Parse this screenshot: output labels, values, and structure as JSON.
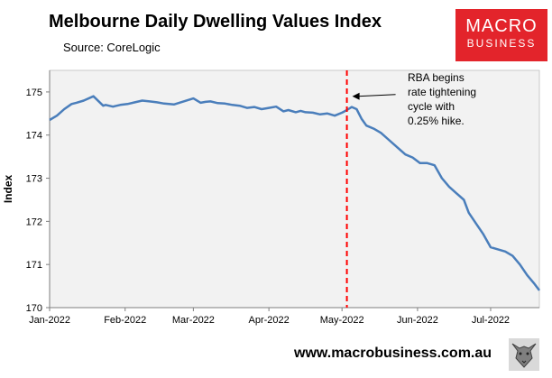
{
  "title": "Melbourne Daily Dwelling Values Index",
  "source": "Source: CoreLogic",
  "logo": {
    "line1": "MACRO",
    "line2": "BUSINESS"
  },
  "footer": {
    "url": "www.macrobusiness.com.au"
  },
  "colors": {
    "line": "#4a7ebb",
    "marker": "#ff0000",
    "plot_bg": "#f2f2f2",
    "logo": "#e3242b"
  },
  "chart_data": {
    "type": "line",
    "title": "Melbourne Daily Dwelling Values Index",
    "xlabel": "",
    "ylabel": "Index",
    "ylim": [
      170,
      175.5
    ],
    "yticks": [
      170,
      171,
      172,
      173,
      174,
      175
    ],
    "xlim": [
      "2022-01-01",
      "2022-07-21"
    ],
    "xticks": [
      {
        "date": "2022-01-01",
        "label": "Jan-2022"
      },
      {
        "date": "2022-02-01",
        "label": "Feb-2022"
      },
      {
        "date": "2022-03-01",
        "label": "Mar-2022"
      },
      {
        "date": "2022-04-01",
        "label": "Apr-2022"
      },
      {
        "date": "2022-05-01",
        "label": "May-2022"
      },
      {
        "date": "2022-06-01",
        "label": "Jun-2022"
      },
      {
        "date": "2022-07-01",
        "label": "Jul-2022"
      }
    ],
    "grid": false,
    "series": [
      {
        "x": [
          "2022-01-01",
          "2022-01-04",
          "2022-01-07",
          "2022-01-10",
          "2022-01-12",
          "2022-01-15",
          "2022-01-19",
          "2022-01-23",
          "2022-01-24",
          "2022-01-27",
          "2022-01-30",
          "2022-02-02",
          "2022-02-05",
          "2022-02-08",
          "2022-02-11",
          "2022-02-14",
          "2022-02-17",
          "2022-02-21",
          "2022-02-25",
          "2022-03-01",
          "2022-03-04",
          "2022-03-06",
          "2022-03-08",
          "2022-03-11",
          "2022-03-14",
          "2022-03-17",
          "2022-03-20",
          "2022-03-23",
          "2022-03-26",
          "2022-03-29",
          "2022-04-01",
          "2022-04-04",
          "2022-04-07",
          "2022-04-09",
          "2022-04-12",
          "2022-04-14",
          "2022-04-16",
          "2022-04-19",
          "2022-04-22",
          "2022-04-25",
          "2022-04-28",
          "2022-05-01",
          "2022-05-03",
          "2022-05-05",
          "2022-05-07",
          "2022-05-09",
          "2022-05-11",
          "2022-05-14",
          "2022-05-17",
          "2022-05-20",
          "2022-05-24",
          "2022-05-27",
          "2022-05-30",
          "2022-06-02",
          "2022-06-05",
          "2022-06-08",
          "2022-06-11",
          "2022-06-14",
          "2022-06-17",
          "2022-06-20",
          "2022-06-22",
          "2022-06-25",
          "2022-06-28",
          "2022-07-01",
          "2022-07-04",
          "2022-07-07",
          "2022-07-10",
          "2022-07-13",
          "2022-07-16",
          "2022-07-19",
          "2022-07-21"
        ],
        "y": [
          174.35,
          174.45,
          174.6,
          174.72,
          174.75,
          174.8,
          174.9,
          174.68,
          174.7,
          174.66,
          174.7,
          174.72,
          174.76,
          174.8,
          174.78,
          174.76,
          174.73,
          174.71,
          174.78,
          174.85,
          174.75,
          174.77,
          174.78,
          174.74,
          174.73,
          174.7,
          174.68,
          174.63,
          174.65,
          174.6,
          174.63,
          174.66,
          174.55,
          174.58,
          174.53,
          174.56,
          174.53,
          174.52,
          174.48,
          174.5,
          174.45,
          174.52,
          174.58,
          174.65,
          174.6,
          174.38,
          174.22,
          174.15,
          174.05,
          173.9,
          173.7,
          173.55,
          173.48,
          173.35,
          173.35,
          173.3,
          173.0,
          172.8,
          172.65,
          172.5,
          172.2,
          171.95,
          171.7,
          171.4,
          171.35,
          171.3,
          171.2,
          171.0,
          170.75,
          170.55,
          170.4
        ]
      }
    ],
    "annotations": [
      {
        "text_lines": [
          "RBA begins",
          "rate tightening",
          "cycle with",
          "0.25% hike."
        ],
        "marker_date": "2022-05-03",
        "arrow_to": {
          "date": "2022-05-03",
          "y": 174.9
        }
      }
    ]
  }
}
